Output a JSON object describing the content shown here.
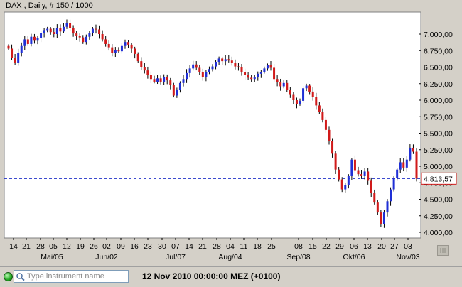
{
  "chart_title": "DAX , Daily, # 150 / 1000",
  "current_price": "4.813,57",
  "search": {
    "placeholder": "Type instrument name"
  },
  "status": {
    "timestamp": "12 Nov 2010 00:00:00  MEZ (+0100)"
  },
  "colors": {
    "up": "#1f2fd6",
    "down": "#d11a1a",
    "price_line": "#2030c8",
    "price_box": "#d11a1a"
  },
  "chart_data": {
    "type": "candlestick",
    "title": "DAX , Daily, # 150 / 1000",
    "ylim": [
      3950,
      7300
    ],
    "y_ticks": [
      "7.000,00",
      "6.750,00",
      "6.500,00",
      "6.250,00",
      "6.000,00",
      "5.750,00",
      "5.500,00",
      "5.250,00",
      "5.000,00",
      "4.750,00",
      "4.500,00",
      "4.250,00",
      "4.000,00"
    ],
    "x_day_ticks": [
      "14",
      "21",
      "28",
      "05",
      "12",
      "19",
      "26",
      "02",
      "09",
      "16",
      "23",
      "30",
      "07",
      "14",
      "21",
      "28",
      "04",
      "11",
      "18",
      "25",
      "08",
      "15",
      "22",
      "29",
      "06",
      "13",
      "20",
      "27",
      "03"
    ],
    "x_month_labels": [
      "Mai/05",
      "Jun/02",
      "Jul/07",
      "Aug/04",
      "Sep/08",
      "Okt/06",
      "Nov/03"
    ],
    "current_value": 4813.57,
    "closes": [
      6780,
      6640,
      6570,
      6720,
      6820,
      6920,
      6850,
      6960,
      6900,
      6940,
      7020,
      7060,
      7080,
      7030,
      7000,
      7090,
      7040,
      7110,
      7170,
      7090,
      7010,
      6970,
      6950,
      6880,
      6960,
      7020,
      7080,
      7070,
      7000,
      6920,
      6850,
      6800,
      6720,
      6760,
      6740,
      6820,
      6880,
      6840,
      6780,
      6700,
      6590,
      6500,
      6450,
      6380,
      6320,
      6280,
      6330,
      6280,
      6350,
      6300,
      6230,
      6070,
      6160,
      6260,
      6320,
      6410,
      6480,
      6540,
      6490,
      6430,
      6350,
      6420,
      6470,
      6510,
      6580,
      6630,
      6590,
      6620,
      6600,
      6560,
      6510,
      6500,
      6430,
      6380,
      6340,
      6320,
      6350,
      6400,
      6430,
      6480,
      6530,
      6490,
      6320,
      6270,
      6210,
      6260,
      6160,
      6080,
      6000,
      5940,
      5990,
      6180,
      6220,
      6130,
      6050,
      5920,
      5820,
      5700,
      5550,
      5380,
      5190,
      4950,
      4800,
      4650,
      4720,
      4850,
      5100,
      4930,
      4880,
      4850,
      4920,
      4780,
      4600,
      4450,
      4300,
      4120,
      4300,
      4470,
      4650,
      4820,
      4950,
      5060,
      4980,
      5100,
      5280,
      5220,
      4813
    ]
  }
}
